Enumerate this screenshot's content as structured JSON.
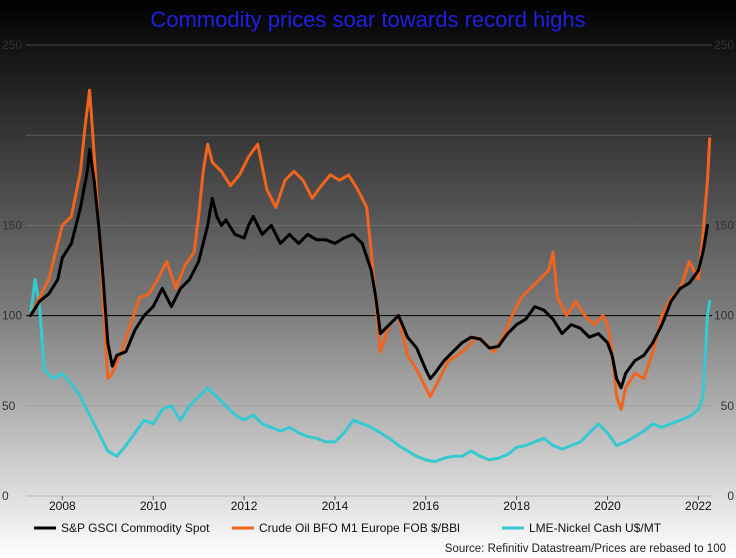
{
  "colors": {
    "title": "#1f1fe6",
    "sp": "#000000",
    "oil": "#f0641e",
    "nickel": "#35c9d2",
    "bg_top": "#000000",
    "bg_bottom": "#ffffff"
  },
  "chart_data": {
    "type": "line",
    "title": "Commodity prices soar towards record highs",
    "source": "Source: Refinitiv Datastream/Prices are rebased to 100",
    "xlim": [
      2007.2,
      2022.3
    ],
    "ylim": [
      0,
      250
    ],
    "x_ticks": [
      "2008",
      "2010",
      "2012",
      "2014",
      "2016",
      "2018",
      "2020",
      "2022"
    ],
    "y_ticks_left": [
      "0",
      "50",
      "100",
      "150",
      "200",
      "250"
    ],
    "y_ticks_right": [
      "0",
      "50",
      "100",
      "150",
      "200",
      "250"
    ],
    "reference_line": 100,
    "series": [
      {
        "name": "S&P GSCI Commodity Spot",
        "color_key": "sp",
        "points": [
          [
            2007.3,
            100
          ],
          [
            2007.5,
            108
          ],
          [
            2007.7,
            112
          ],
          [
            2007.9,
            120
          ],
          [
            2008.0,
            132
          ],
          [
            2008.2,
            140
          ],
          [
            2008.4,
            160
          ],
          [
            2008.55,
            180
          ],
          [
            2008.6,
            192
          ],
          [
            2008.7,
            175
          ],
          [
            2008.8,
            150
          ],
          [
            2008.9,
            120
          ],
          [
            2009.0,
            85
          ],
          [
            2009.1,
            72
          ],
          [
            2009.2,
            78
          ],
          [
            2009.4,
            80
          ],
          [
            2009.6,
            92
          ],
          [
            2009.8,
            100
          ],
          [
            2010.0,
            105
          ],
          [
            2010.2,
            115
          ],
          [
            2010.4,
            105
          ],
          [
            2010.6,
            115
          ],
          [
            2010.8,
            120
          ],
          [
            2011.0,
            130
          ],
          [
            2011.2,
            150
          ],
          [
            2011.3,
            165
          ],
          [
            2011.4,
            155
          ],
          [
            2011.5,
            150
          ],
          [
            2011.6,
            153
          ],
          [
            2011.8,
            145
          ],
          [
            2012.0,
            143
          ],
          [
            2012.1,
            150
          ],
          [
            2012.2,
            155
          ],
          [
            2012.4,
            145
          ],
          [
            2012.6,
            150
          ],
          [
            2012.8,
            140
          ],
          [
            2013.0,
            145
          ],
          [
            2013.2,
            140
          ],
          [
            2013.4,
            145
          ],
          [
            2013.6,
            142
          ],
          [
            2013.8,
            142
          ],
          [
            2014.0,
            140
          ],
          [
            2014.2,
            143
          ],
          [
            2014.4,
            145
          ],
          [
            2014.6,
            140
          ],
          [
            2014.8,
            125
          ],
          [
            2014.9,
            110
          ],
          [
            2015.0,
            90
          ],
          [
            2015.2,
            95
          ],
          [
            2015.4,
            100
          ],
          [
            2015.6,
            88
          ],
          [
            2015.8,
            82
          ],
          [
            2016.0,
            70
          ],
          [
            2016.1,
            65
          ],
          [
            2016.2,
            68
          ],
          [
            2016.4,
            75
          ],
          [
            2016.6,
            80
          ],
          [
            2016.8,
            85
          ],
          [
            2017.0,
            88
          ],
          [
            2017.2,
            87
          ],
          [
            2017.4,
            82
          ],
          [
            2017.6,
            83
          ],
          [
            2017.8,
            90
          ],
          [
            2018.0,
            95
          ],
          [
            2018.2,
            98
          ],
          [
            2018.4,
            105
          ],
          [
            2018.6,
            103
          ],
          [
            2018.8,
            98
          ],
          [
            2019.0,
            90
          ],
          [
            2019.2,
            95
          ],
          [
            2019.4,
            93
          ],
          [
            2019.6,
            88
          ],
          [
            2019.8,
            90
          ],
          [
            2020.0,
            85
          ],
          [
            2020.1,
            78
          ],
          [
            2020.2,
            65
          ],
          [
            2020.3,
            60
          ],
          [
            2020.4,
            68
          ],
          [
            2020.6,
            75
          ],
          [
            2020.8,
            78
          ],
          [
            2021.0,
            85
          ],
          [
            2021.2,
            95
          ],
          [
            2021.4,
            108
          ],
          [
            2021.6,
            115
          ],
          [
            2021.8,
            118
          ],
          [
            2022.0,
            125
          ],
          [
            2022.1,
            135
          ],
          [
            2022.2,
            150
          ]
        ]
      },
      {
        "name": "Crude Oil BFO M1 Europe FOB $/BBl",
        "color_key": "oil",
        "points": [
          [
            2007.3,
            100
          ],
          [
            2007.5,
            110
          ],
          [
            2007.7,
            120
          ],
          [
            2007.9,
            140
          ],
          [
            2008.0,
            150
          ],
          [
            2008.2,
            155
          ],
          [
            2008.4,
            180
          ],
          [
            2008.5,
            205
          ],
          [
            2008.6,
            225
          ],
          [
            2008.7,
            190
          ],
          [
            2008.8,
            150
          ],
          [
            2008.9,
            110
          ],
          [
            2009.0,
            65
          ],
          [
            2009.1,
            68
          ],
          [
            2009.3,
            80
          ],
          [
            2009.5,
            95
          ],
          [
            2009.7,
            110
          ],
          [
            2009.9,
            112
          ],
          [
            2010.1,
            120
          ],
          [
            2010.3,
            130
          ],
          [
            2010.5,
            115
          ],
          [
            2010.7,
            128
          ],
          [
            2010.9,
            135
          ],
          [
            2011.0,
            155
          ],
          [
            2011.1,
            180
          ],
          [
            2011.2,
            195
          ],
          [
            2011.3,
            185
          ],
          [
            2011.5,
            180
          ],
          [
            2011.7,
            172
          ],
          [
            2011.9,
            178
          ],
          [
            2012.1,
            188
          ],
          [
            2012.3,
            195
          ],
          [
            2012.5,
            170
          ],
          [
            2012.7,
            160
          ],
          [
            2012.9,
            175
          ],
          [
            2013.1,
            180
          ],
          [
            2013.3,
            175
          ],
          [
            2013.5,
            165
          ],
          [
            2013.7,
            172
          ],
          [
            2013.9,
            178
          ],
          [
            2014.1,
            175
          ],
          [
            2014.3,
            178
          ],
          [
            2014.5,
            170
          ],
          [
            2014.7,
            160
          ],
          [
            2014.8,
            135
          ],
          [
            2015.0,
            80
          ],
          [
            2015.2,
            95
          ],
          [
            2015.4,
            100
          ],
          [
            2015.6,
            78
          ],
          [
            2015.8,
            70
          ],
          [
            2016.0,
            60
          ],
          [
            2016.1,
            55
          ],
          [
            2016.3,
            65
          ],
          [
            2016.5,
            75
          ],
          [
            2016.7,
            78
          ],
          [
            2016.9,
            82
          ],
          [
            2017.1,
            88
          ],
          [
            2017.3,
            85
          ],
          [
            2017.5,
            80
          ],
          [
            2017.7,
            88
          ],
          [
            2017.9,
            100
          ],
          [
            2018.1,
            110
          ],
          [
            2018.3,
            115
          ],
          [
            2018.5,
            120
          ],
          [
            2018.7,
            125
          ],
          [
            2018.8,
            135
          ],
          [
            2018.9,
            110
          ],
          [
            2019.1,
            100
          ],
          [
            2019.3,
            108
          ],
          [
            2019.5,
            100
          ],
          [
            2019.7,
            95
          ],
          [
            2019.9,
            100
          ],
          [
            2020.0,
            95
          ],
          [
            2020.1,
            80
          ],
          [
            2020.2,
            55
          ],
          [
            2020.3,
            48
          ],
          [
            2020.4,
            60
          ],
          [
            2020.6,
            68
          ],
          [
            2020.8,
            65
          ],
          [
            2021.0,
            80
          ],
          [
            2021.2,
            100
          ],
          [
            2021.4,
            110
          ],
          [
            2021.6,
            115
          ],
          [
            2021.8,
            130
          ],
          [
            2022.0,
            120
          ],
          [
            2022.1,
            145
          ],
          [
            2022.2,
            175
          ],
          [
            2022.25,
            198
          ]
        ]
      },
      {
        "name": "LME-Nickel Cash U$/MT",
        "color_key": "nickel",
        "points": [
          [
            2007.3,
            100
          ],
          [
            2007.4,
            120
          ],
          [
            2007.5,
            105
          ],
          [
            2007.6,
            70
          ],
          [
            2007.8,
            65
          ],
          [
            2008.0,
            68
          ],
          [
            2008.2,
            62
          ],
          [
            2008.4,
            55
          ],
          [
            2008.6,
            45
          ],
          [
            2008.8,
            35
          ],
          [
            2009.0,
            25
          ],
          [
            2009.2,
            22
          ],
          [
            2009.4,
            28
          ],
          [
            2009.6,
            35
          ],
          [
            2009.8,
            42
          ],
          [
            2010.0,
            40
          ],
          [
            2010.2,
            48
          ],
          [
            2010.4,
            50
          ],
          [
            2010.6,
            42
          ],
          [
            2010.8,
            50
          ],
          [
            2011.0,
            55
          ],
          [
            2011.2,
            60
          ],
          [
            2011.4,
            55
          ],
          [
            2011.6,
            50
          ],
          [
            2011.8,
            45
          ],
          [
            2012.0,
            42
          ],
          [
            2012.2,
            45
          ],
          [
            2012.4,
            40
          ],
          [
            2012.6,
            38
          ],
          [
            2012.8,
            36
          ],
          [
            2013.0,
            38
          ],
          [
            2013.2,
            35
          ],
          [
            2013.4,
            33
          ],
          [
            2013.6,
            32
          ],
          [
            2013.8,
            30
          ],
          [
            2014.0,
            30
          ],
          [
            2014.2,
            35
          ],
          [
            2014.4,
            42
          ],
          [
            2014.6,
            40
          ],
          [
            2014.8,
            38
          ],
          [
            2015.0,
            35
          ],
          [
            2015.2,
            32
          ],
          [
            2015.4,
            28
          ],
          [
            2015.6,
            25
          ],
          [
            2015.8,
            22
          ],
          [
            2016.0,
            20
          ],
          [
            2016.2,
            19
          ],
          [
            2016.4,
            21
          ],
          [
            2016.6,
            22
          ],
          [
            2016.8,
            22
          ],
          [
            2017.0,
            25
          ],
          [
            2017.2,
            22
          ],
          [
            2017.4,
            20
          ],
          [
            2017.6,
            21
          ],
          [
            2017.8,
            23
          ],
          [
            2018.0,
            27
          ],
          [
            2018.2,
            28
          ],
          [
            2018.4,
            30
          ],
          [
            2018.6,
            32
          ],
          [
            2018.8,
            28
          ],
          [
            2019.0,
            26
          ],
          [
            2019.2,
            28
          ],
          [
            2019.4,
            30
          ],
          [
            2019.6,
            35
          ],
          [
            2019.8,
            40
          ],
          [
            2020.0,
            35
          ],
          [
            2020.2,
            28
          ],
          [
            2020.4,
            30
          ],
          [
            2020.6,
            33
          ],
          [
            2020.8,
            36
          ],
          [
            2021.0,
            40
          ],
          [
            2021.2,
            38
          ],
          [
            2021.4,
            40
          ],
          [
            2021.6,
            42
          ],
          [
            2021.8,
            44
          ],
          [
            2022.0,
            48
          ],
          [
            2022.1,
            55
          ],
          [
            2022.2,
            100
          ],
          [
            2022.25,
            108
          ]
        ]
      }
    ]
  }
}
